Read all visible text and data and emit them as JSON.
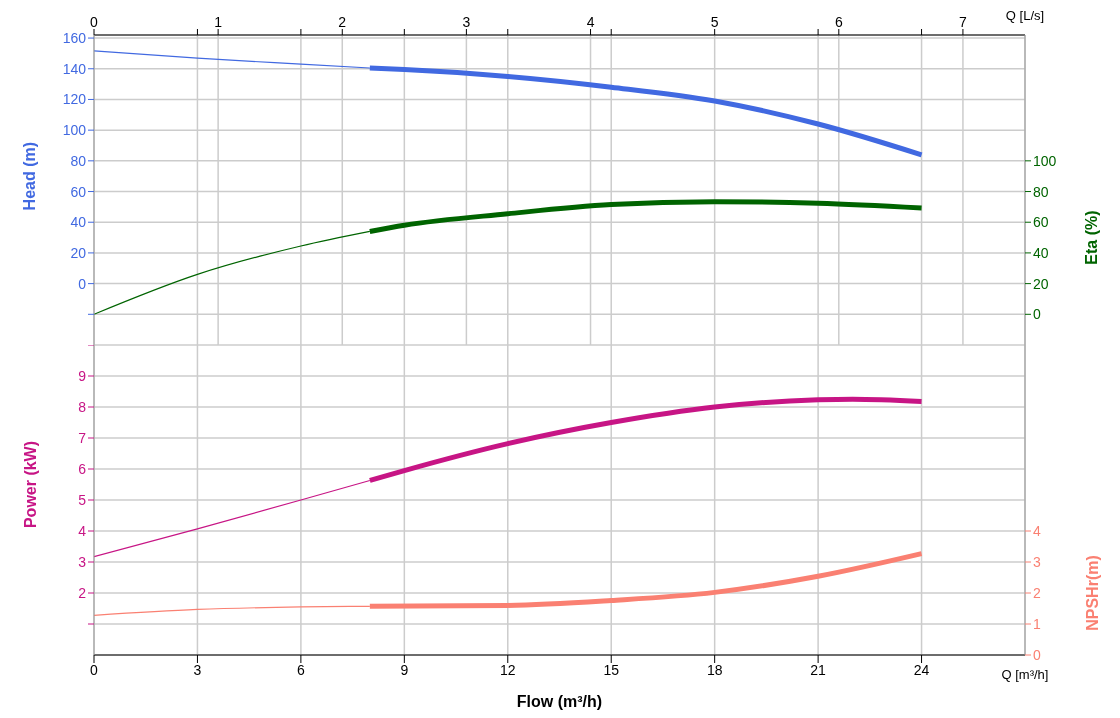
{
  "chart_data": [
    {
      "type": "line",
      "ylabel": "Head (m)",
      "y2label": "Eta (%)",
      "annotations": [
        "Q [L/s]"
      ],
      "grid": true,
      "xlim": [
        0,
        7.5
      ],
      "xticks": [
        0,
        {
          "value": 0.8333,
          "label": null
        },
        1,
        {
          "value": 1.6667,
          "label": null
        },
        2,
        {
          "value": 2.5,
          "label": null
        },
        3,
        {
          "value": 3.3333,
          "label": null
        },
        4,
        {
          "value": 4.1667,
          "label": null
        },
        5,
        {
          "value": 5.8333,
          "label": null
        },
        6,
        {
          "value": 6.6667,
          "label": null
        },
        7
      ],
      "ylim": [
        -40,
        162
      ],
      "yticks": [
        {
          "value": -20,
          "label": null
        },
        0,
        20,
        40,
        60,
        80,
        100,
        120,
        140,
        160
      ],
      "y2lim": [
        -20,
        182
      ],
      "y2ticks": [
        0,
        20,
        40,
        60,
        80,
        100
      ],
      "series": [
        {
          "color": "#4169e1",
          "x": [
            0,
            0.833,
            1.667,
            2.222
          ],
          "values": [
            151.7,
            146.9,
            143,
            140.5
          ]
        },
        {
          "color": "#4169e1",
          "x": [
            2.222,
            2.5,
            3.333,
            4.167,
            5,
            5.833,
            6.667
          ],
          "values": [
            140.5,
            139.5,
            135,
            128,
            119,
            104,
            83.9
          ]
        },
        {
          "color": "#006400",
          "axis": "y2",
          "x": [
            0,
            0.833,
            1.667,
            2.222
          ],
          "values": [
            0,
            26,
            44.5,
            54
          ]
        },
        {
          "color": "#006400",
          "axis": "y2",
          "x": [
            2.222,
            2.5,
            3.333,
            4.167,
            5,
            5.833,
            6.667
          ],
          "values": [
            54,
            58,
            65.5,
            71.5,
            73.4,
            72.3,
            69.2
          ]
        }
      ]
    },
    {
      "type": "line",
      "xlabel": "Flow (m³/h)",
      "annotations": [
        "Q [m³/h]"
      ],
      "ylabel": "Power (kW)",
      "y2label": "NPSHr(m)",
      "grid": true,
      "xlim": [
        0,
        27
      ],
      "xticks": [
        0,
        3,
        6,
        9,
        12,
        15,
        18,
        21,
        24
      ],
      "ylim": [
        0,
        10
      ],
      "yticks": [
        {
          "value": 1,
          "label": null
        },
        2,
        3,
        4,
        5,
        6,
        7,
        8,
        9,
        {
          "value": 10,
          "label": null
        }
      ],
      "y2lim": [
        0,
        10
      ],
      "y2ticks": [
        0,
        1,
        2,
        3,
        4
      ],
      "series": [
        {
          "color": "#c71585",
          "x": [
            0,
            3,
            6,
            8
          ],
          "values": [
            3.17,
            4.07,
            5.0,
            5.63
          ]
        },
        {
          "color": "#c71585",
          "x": [
            8,
            9,
            12,
            15,
            18,
            21,
            22,
            24
          ],
          "values": [
            5.63,
            5.95,
            6.82,
            7.5,
            8.0,
            8.23,
            8.25,
            8.18
          ]
        },
        {
          "color": "#fa8072",
          "axis": "y2",
          "x": [
            0,
            3,
            6,
            8
          ],
          "values": [
            1.28,
            1.47,
            1.55,
            1.57
          ]
        },
        {
          "color": "#fa8072",
          "axis": "y2",
          "x": [
            8,
            12,
            15,
            18,
            21,
            24
          ],
          "values": [
            1.57,
            1.6,
            1.76,
            2.02,
            2.54,
            3.27
          ]
        }
      ]
    }
  ]
}
